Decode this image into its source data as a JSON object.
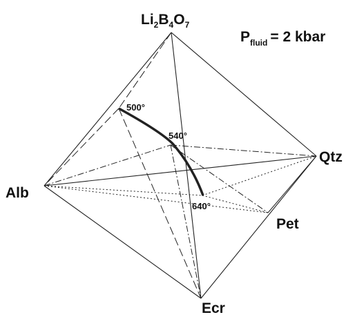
{
  "apex_label": {
    "parts": [
      "Li",
      "2",
      "B",
      "4",
      "O",
      "7"
    ]
  },
  "pressure": {
    "symbol": "P",
    "subscript": "fluid",
    "value": "= 2 kbar"
  },
  "vertices": [
    {
      "label": "Alb"
    },
    {
      "label": "Qtz"
    },
    {
      "label": "Pet"
    },
    {
      "label": "Ecr"
    }
  ],
  "temperatures": [
    {
      "label": "500°"
    },
    {
      "label": "540°"
    },
    {
      "label": "640°"
    }
  ]
}
